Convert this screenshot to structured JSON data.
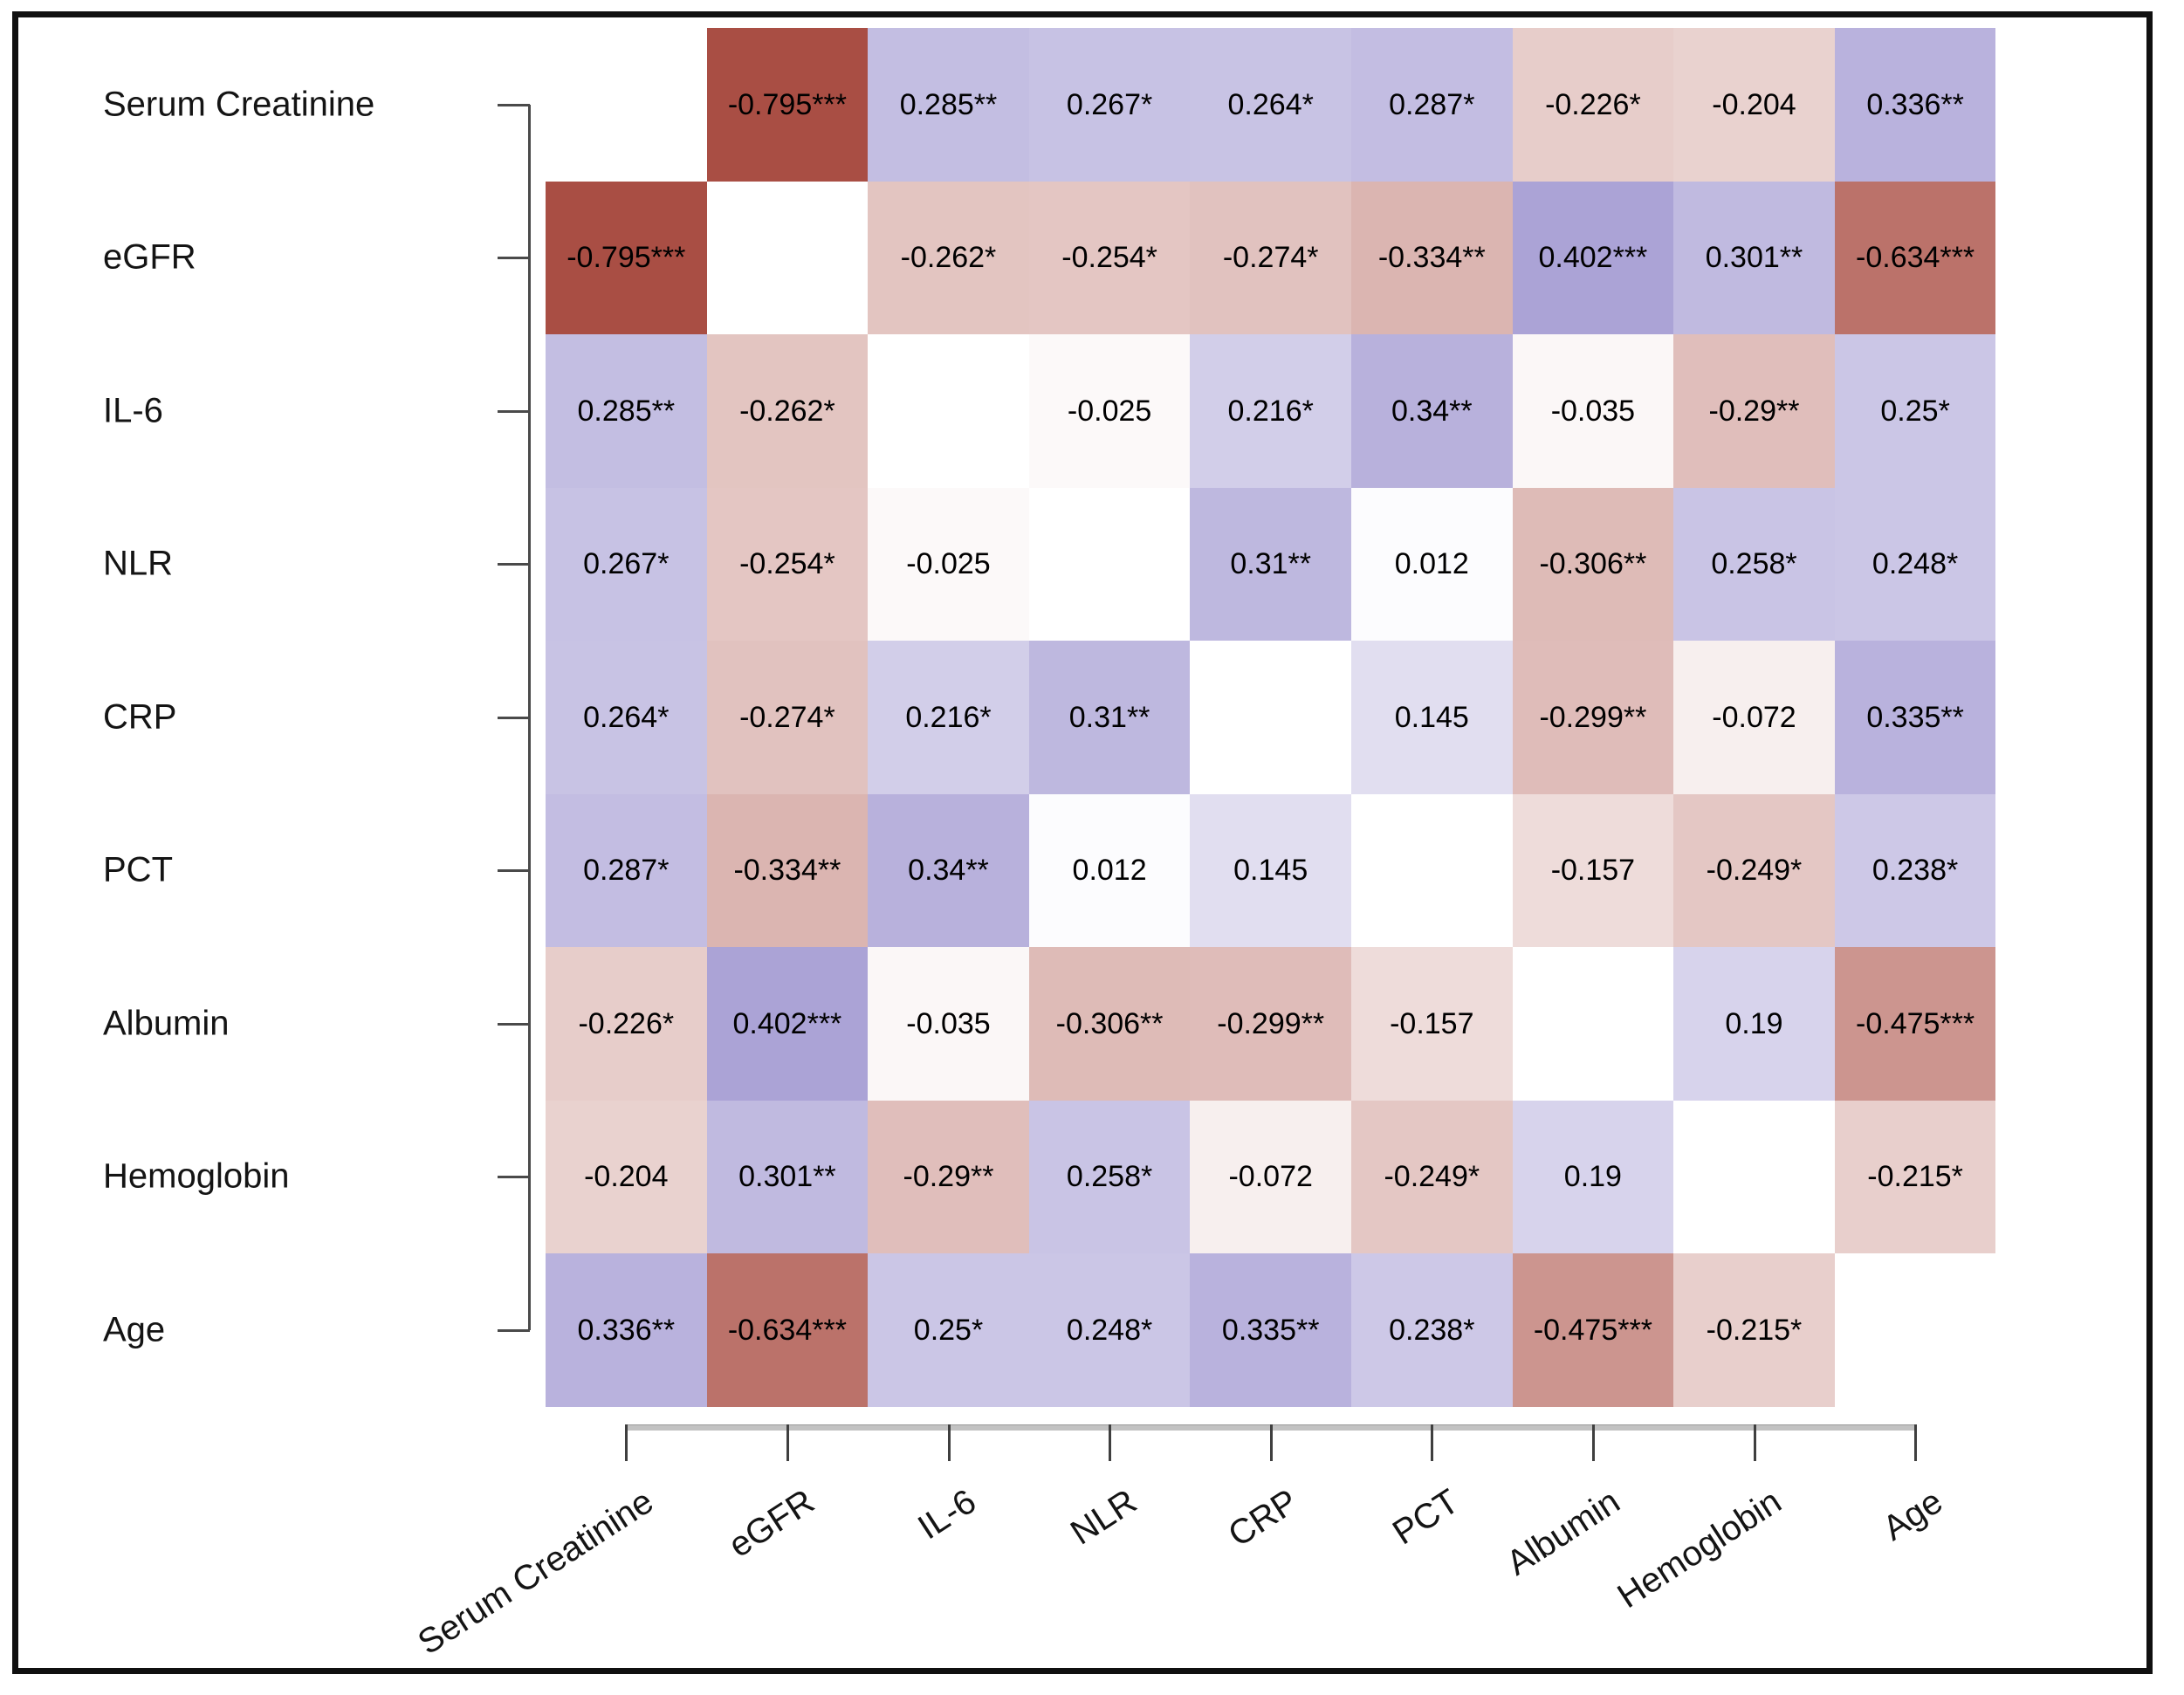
{
  "chart_data": {
    "type": "heatmap",
    "title": "",
    "variables": [
      "Serum Creatinine",
      "eGFR",
      "IL-6",
      "NLR",
      "CRP",
      "PCT",
      "Albumin",
      "Hemoglobin",
      "Age"
    ],
    "diagonal": "blank",
    "cells": [
      [
        "",
        "-0.795***",
        "0.285**",
        "0.267*",
        "0.264*",
        "0.287*",
        "-0.226*",
        "-0.204",
        "0.336**"
      ],
      [
        "-0.795***",
        "",
        "-0.262*",
        "-0.254*",
        "-0.274*",
        "-0.334**",
        "0.402***",
        "0.301**",
        "-0.634***"
      ],
      [
        "0.285**",
        "-0.262*",
        "",
        "-0.025",
        "0.216*",
        "0.34**",
        "-0.035",
        "-0.29**",
        "0.25*"
      ],
      [
        "0.267*",
        "-0.254*",
        "-0.025",
        "",
        "0.31**",
        "0.012",
        "-0.306**",
        "0.258*",
        "0.248*"
      ],
      [
        "0.264*",
        "-0.274*",
        "0.216*",
        "0.31**",
        "",
        "0.145",
        "-0.299**",
        "-0.072",
        "0.335**"
      ],
      [
        "0.287*",
        "-0.334**",
        "0.34**",
        "0.012",
        "0.145",
        "",
        "-0.157",
        "-0.249*",
        "0.238*"
      ],
      [
        "-0.226*",
        "0.402***",
        "-0.035",
        "-0.306**",
        "-0.299**",
        "-0.157",
        "",
        "0.19",
        "-0.475***"
      ],
      [
        "-0.204",
        "0.301**",
        "-0.29**",
        "0.258*",
        "-0.072",
        "-0.249*",
        "0.19",
        "",
        "-0.215*"
      ],
      [
        "0.336**",
        "-0.634***",
        "0.25*",
        "0.248*",
        "0.335**",
        "0.238*",
        "-0.475***",
        "-0.215*",
        ""
      ]
    ],
    "colormap": {
      "negative_end": "#932014",
      "positive_end": "#2E1A99",
      "zero": "#FFFFFF"
    },
    "value_range": [
      -1,
      1
    ],
    "grid": "off",
    "legend": "none"
  }
}
